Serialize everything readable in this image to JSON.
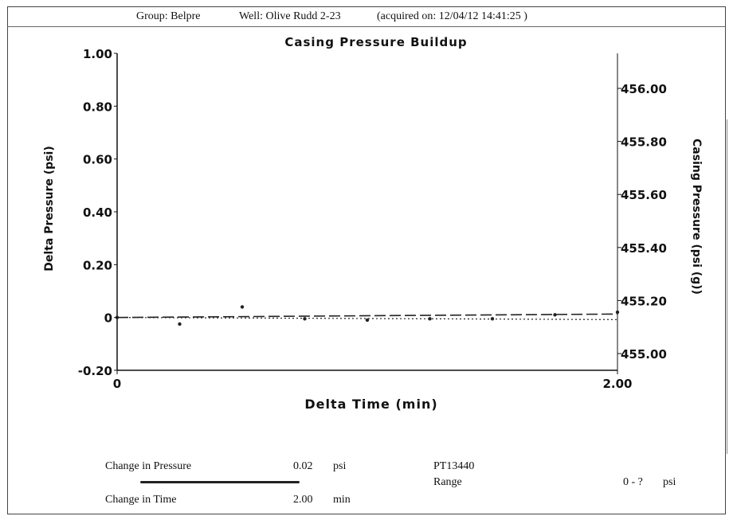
{
  "header": {
    "group": "Group: Belpre",
    "well": "Well: Olive Rudd 2-23",
    "acquired": "(acquired on: 12/04/12 14:41:25 )"
  },
  "chart_data": {
    "type": "line",
    "title": "Casing Pressure Buildup",
    "xlabel": "Delta Time (min)",
    "ylabel": "Delta Pressure (psi)",
    "y2label": "Casing Pressure (psi (g))",
    "xlim": [
      0,
      2.0
    ],
    "ylim": [
      -0.2,
      1.0
    ],
    "y2lim": [
      455.0,
      456.0
    ],
    "xticks": [
      "0",
      "2.00"
    ],
    "yticks": [
      {
        "value": 1.0,
        "label": "1.00"
      },
      {
        "value": 0.8,
        "label": "0.80"
      },
      {
        "value": 0.6,
        "label": "0.60"
      },
      {
        "value": 0.4,
        "label": "0.40"
      },
      {
        "value": 0.2,
        "label": "0.20"
      },
      {
        "value": 0.0,
        "label": "0"
      },
      {
        "value": -0.2,
        "label": "-0.20"
      }
    ],
    "y2ticks": [
      {
        "value": 456.0,
        "label": "456.00"
      },
      {
        "value": 455.8,
        "label": "455.80"
      },
      {
        "value": 455.6,
        "label": "455.60"
      },
      {
        "value": 455.4,
        "label": "455.40"
      },
      {
        "value": 455.2,
        "label": "455.20"
      },
      {
        "value": 455.0,
        "label": "455.00"
      }
    ],
    "grid": false,
    "series": [
      {
        "style": "dashed-trend",
        "x": [
          0,
          2.0
        ],
        "y": [
          0,
          0.013
        ]
      },
      {
        "style": "dotted-baseline",
        "x": [
          0,
          2.0
        ],
        "y": [
          0,
          -0.008
        ]
      },
      {
        "style": "points",
        "x": [
          0.0,
          0.25,
          0.5,
          0.75,
          1.0,
          1.25,
          1.5,
          1.75,
          2.0
        ],
        "y": [
          0.0,
          -0.025,
          0.04,
          -0.005,
          -0.01,
          -0.005,
          -0.005,
          0.01,
          0.02
        ]
      }
    ]
  },
  "summary": {
    "change_pressure_label": "Change in Pressure",
    "change_pressure_value": "0.02",
    "change_pressure_unit": "psi",
    "change_time_label": "Change in Time",
    "change_time_value": "2.00",
    "change_time_unit": "min",
    "gauge_id": "PT13440",
    "range_label": "Range",
    "range_value": "0 - ?",
    "range_unit": "psi"
  }
}
